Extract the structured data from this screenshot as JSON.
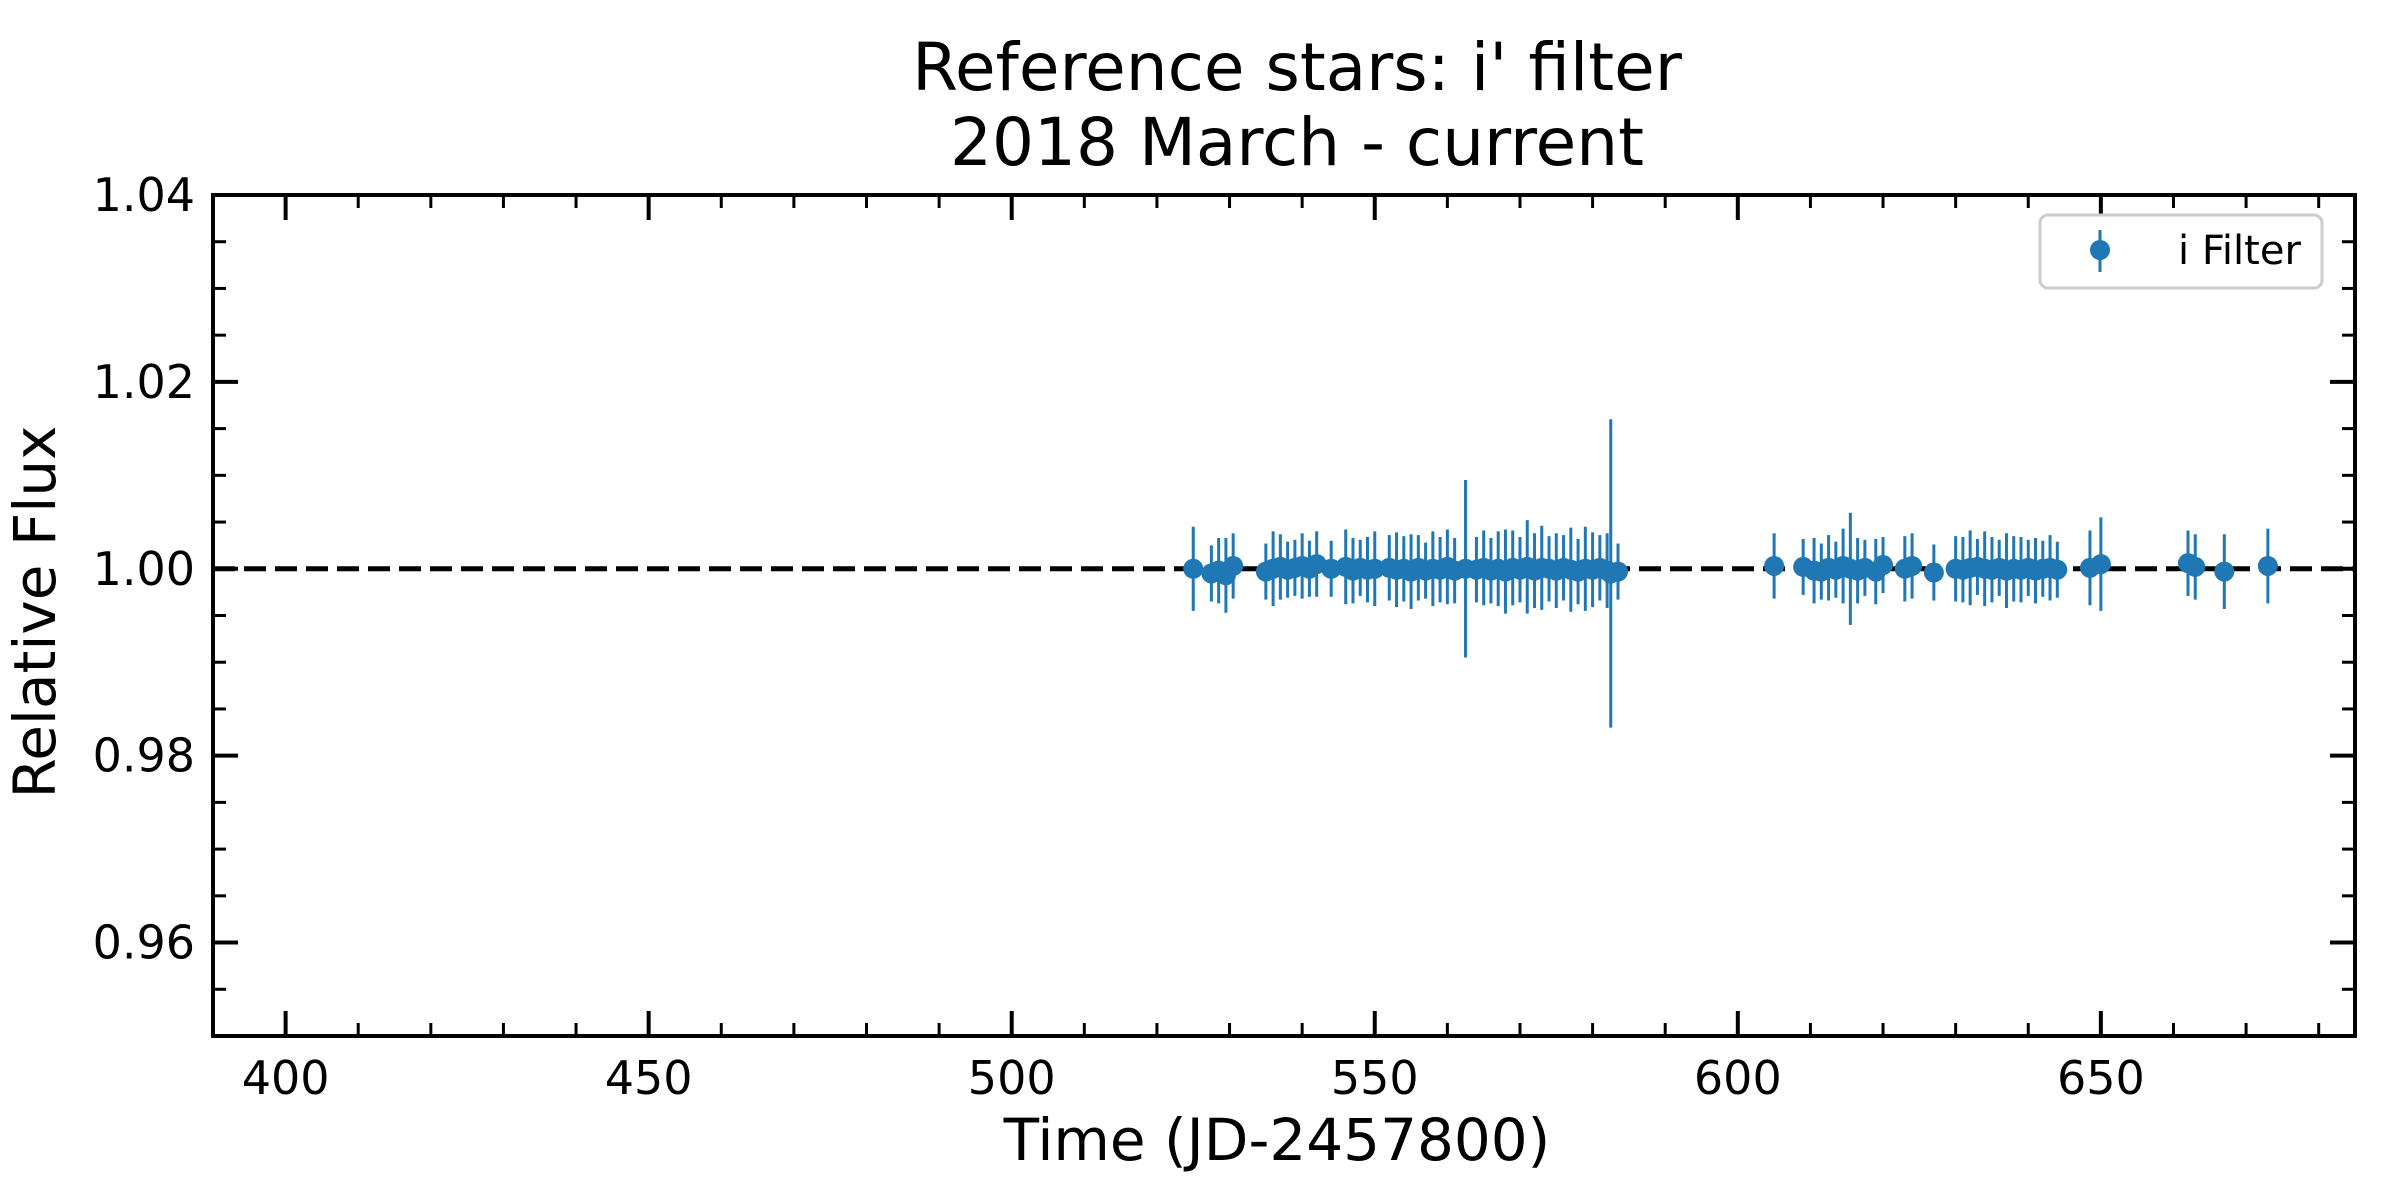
{
  "chart_data": {
    "type": "scatter",
    "title": "Reference stars: i' filter",
    "subtitle": "2018 March - current",
    "xlabel": "Time (JD-2457800)",
    "ylabel": "Relative Flux",
    "xlim": [
      390,
      685
    ],
    "ylim": [
      0.95,
      1.04
    ],
    "x_ticks": [
      400,
      450,
      500,
      550,
      600,
      650
    ],
    "x_tick_labels": [
      "400",
      "450",
      "500",
      "550",
      "600",
      "650"
    ],
    "y_ticks": [
      0.96,
      0.98,
      1.0,
      1.02,
      1.04
    ],
    "y_tick_labels": [
      "0.96",
      "0.98",
      "1.00",
      "1.02",
      "1.04"
    ],
    "reference_line": {
      "y": 1.0,
      "style": "dashed",
      "color": "#000000"
    },
    "legend": {
      "position": "top-right",
      "entries": [
        "i Filter"
      ]
    },
    "series": [
      {
        "name": "i Filter",
        "color": "#1f77b4",
        "marker": "circle",
        "points": [
          [
            525.0,
            1.0,
            0.0045
          ],
          [
            527.5,
            0.9995,
            0.003
          ],
          [
            528.5,
            0.9998,
            0.0035
          ],
          [
            529.5,
            0.9993,
            0.004
          ],
          [
            530.5,
            1.0003,
            0.0035
          ],
          [
            535.0,
            0.9997,
            0.003
          ],
          [
            536.0,
            1.0,
            0.004
          ],
          [
            537.0,
            1.0002,
            0.0035
          ],
          [
            538.0,
            0.9999,
            0.003
          ],
          [
            539.0,
            1.0001,
            0.003
          ],
          [
            540.0,
            1.0003,
            0.0035
          ],
          [
            541.0,
            1.0,
            0.003
          ],
          [
            542.0,
            1.0005,
            0.0035
          ],
          [
            544.0,
            1.0,
            0.003
          ],
          [
            546.0,
            1.0002,
            0.004
          ],
          [
            547.0,
            0.9998,
            0.0035
          ],
          [
            548.0,
            1.0001,
            0.003
          ],
          [
            549.0,
            0.9999,
            0.0035
          ],
          [
            550.0,
            1.0,
            0.004
          ],
          [
            552.0,
            1.0001,
            0.0035
          ],
          [
            553.0,
            0.9999,
            0.004
          ],
          [
            554.0,
            1.0,
            0.0035
          ],
          [
            555.0,
            0.9997,
            0.004
          ],
          [
            556.0,
            1.0001,
            0.0035
          ],
          [
            557.0,
            0.9998,
            0.003
          ],
          [
            558.0,
            1.0,
            0.004
          ],
          [
            559.0,
            0.9999,
            0.0035
          ],
          [
            560.0,
            1.0002,
            0.004
          ],
          [
            561.0,
            0.9998,
            0.0035
          ],
          [
            562.5,
            1.0,
            0.0095
          ],
          [
            564.0,
            0.9999,
            0.0035
          ],
          [
            565.0,
            1.0001,
            0.004
          ],
          [
            566.0,
            0.9998,
            0.0035
          ],
          [
            567.0,
            1.0,
            0.004
          ],
          [
            568.0,
            0.9997,
            0.0045
          ],
          [
            569.0,
            1.0001,
            0.004
          ],
          [
            570.0,
            0.9999,
            0.0035
          ],
          [
            571.0,
            1.0002,
            0.005
          ],
          [
            572.0,
            0.9998,
            0.004
          ],
          [
            573.0,
            1.0001,
            0.0045
          ],
          [
            574.0,
            1.0,
            0.0035
          ],
          [
            575.0,
            0.9998,
            0.004
          ],
          [
            576.0,
            1.0001,
            0.0035
          ],
          [
            577.0,
            0.9999,
            0.0045
          ],
          [
            578.0,
            0.9997,
            0.0035
          ],
          [
            579.0,
            1.0,
            0.0045
          ],
          [
            580.0,
            0.9999,
            0.004
          ],
          [
            581.0,
            1.0001,
            0.0035
          ],
          [
            582.0,
            0.9998,
            0.004
          ],
          [
            582.5,
            0.9995,
            0.0165
          ],
          [
            583.5,
            0.9997,
            0.003
          ],
          [
            605.0,
            1.0003,
            0.0035
          ],
          [
            609.0,
            1.0002,
            0.003
          ],
          [
            610.5,
            0.9998,
            0.0035
          ],
          [
            611.5,
            0.9997,
            0.003
          ],
          [
            612.5,
            1.0001,
            0.0035
          ],
          [
            613.5,
            0.9999,
            0.003
          ],
          [
            614.5,
            1.0003,
            0.004
          ],
          [
            615.5,
            1.0,
            0.006
          ],
          [
            616.5,
            0.9998,
            0.0035
          ],
          [
            617.5,
            1.0001,
            0.003
          ],
          [
            619.0,
            0.9997,
            0.0035
          ],
          [
            620.0,
            1.0004,
            0.003
          ],
          [
            623.0,
            1.0,
            0.0035
          ],
          [
            624.0,
            1.0003,
            0.0035
          ],
          [
            627.0,
            0.9996,
            0.003
          ],
          [
            630.0,
            1.0,
            0.0035
          ],
          [
            631.0,
            0.9999,
            0.0035
          ],
          [
            632.0,
            1.0001,
            0.004
          ],
          [
            633.0,
            1.0002,
            0.003
          ],
          [
            634.0,
            1.0,
            0.004
          ],
          [
            635.0,
            0.9999,
            0.0035
          ],
          [
            636.0,
            1.0001,
            0.003
          ],
          [
            637.0,
            0.9998,
            0.004
          ],
          [
            638.0,
            1.0,
            0.0035
          ],
          [
            639.0,
            0.9999,
            0.0035
          ],
          [
            640.0,
            1.0001,
            0.003
          ],
          [
            641.0,
            0.9998,
            0.0035
          ],
          [
            642.0,
            1.0,
            0.003
          ],
          [
            643.0,
            1.0001,
            0.0035
          ],
          [
            644.0,
            0.9999,
            0.003
          ],
          [
            648.5,
            1.0001,
            0.004
          ],
          [
            650.0,
            1.0005,
            0.005
          ],
          [
            662.0,
            1.0006,
            0.0035
          ],
          [
            663.0,
            1.0002,
            0.0035
          ],
          [
            667.0,
            0.9997,
            0.004
          ],
          [
            673.0,
            1.0003,
            0.004
          ]
        ]
      }
    ]
  }
}
